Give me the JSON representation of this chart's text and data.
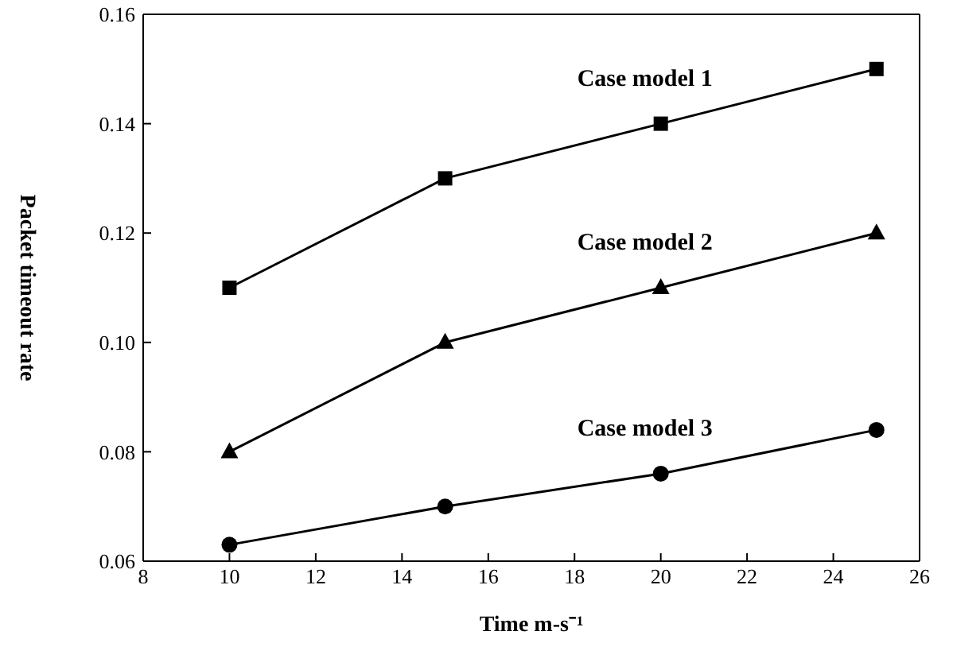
{
  "chart_data": {
    "type": "line",
    "xlabel": "Time m-s⁻¹",
    "ylabel": "Packet timeout rate",
    "x": [
      10,
      15,
      20,
      25
    ],
    "xlim": [
      8,
      26
    ],
    "xticks": [
      8,
      10,
      12,
      14,
      16,
      18,
      20,
      22,
      24,
      26
    ],
    "ylim": [
      0.06,
      0.16
    ],
    "yticks": [
      0.06,
      0.08,
      {
        "value": 0.1,
        "label": "0.10"
      },
      0.12,
      0.14,
      0.16
    ],
    "grid": false,
    "legend": false,
    "line_style": "solid",
    "series": [
      {
        "name": "Case model 1",
        "color": "#000000",
        "marker": "square",
        "values": [
          0.11,
          0.13,
          0.14,
          0.15
        ]
      },
      {
        "name": "Case model 2",
        "color": "#000000",
        "marker": "triangle",
        "values": [
          0.08,
          0.1,
          0.11,
          0.12
        ]
      },
      {
        "name": "Case model 3",
        "color": "#000000",
        "marker": "circle",
        "values": [
          0.063,
          0.07,
          0.076,
          0.084
        ]
      }
    ]
  }
}
